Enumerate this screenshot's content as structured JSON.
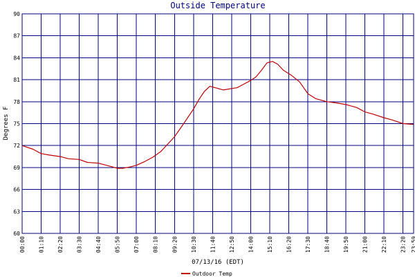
{
  "chart_data": {
    "type": "line",
    "title": "Outside Temperature",
    "xlabel": "07/13/16 (EDT)",
    "ylabel": "Degrees F",
    "ylim": [
      60,
      90
    ],
    "yticks": [
      60,
      63,
      66,
      69,
      72,
      75,
      78,
      81,
      84,
      87,
      90
    ],
    "xlim": [
      "00:00",
      "23:59"
    ],
    "xticks": [
      "00:00",
      "01:10",
      "02:20",
      "03:30",
      "04:40",
      "05:50",
      "07:00",
      "08:10",
      "09:20",
      "10:30",
      "11:40",
      "12:50",
      "14:00",
      "15:10",
      "16:20",
      "17:30",
      "18:40",
      "19:50",
      "21:00",
      "22:10",
      "23:20",
      "23:59"
    ],
    "grid": true,
    "legend": "bottom",
    "colors": {
      "series": "#c00000",
      "grid": "#000080",
      "title": "#000080"
    },
    "series": [
      {
        "name": "Outdoor Temp",
        "x": [
          "00:00",
          "00:40",
          "01:10",
          "01:40",
          "02:20",
          "02:50",
          "03:30",
          "04:00",
          "04:40",
          "05:10",
          "05:30",
          "05:50",
          "06:10",
          "06:40",
          "07:00",
          "07:30",
          "08:00",
          "08:30",
          "09:00",
          "09:20",
          "09:50",
          "10:30",
          "10:50",
          "11:10",
          "11:30",
          "11:50",
          "12:20",
          "12:50",
          "13:10",
          "13:30",
          "14:00",
          "14:20",
          "14:40",
          "15:00",
          "15:20",
          "15:40",
          "16:00",
          "16:30",
          "17:00",
          "17:30",
          "18:00",
          "18:40",
          "19:20",
          "19:50",
          "20:30",
          "21:00",
          "21:30",
          "22:10",
          "22:40",
          "23:20",
          "23:59"
        ],
        "values": [
          72.0,
          71.5,
          70.9,
          70.7,
          70.5,
          70.2,
          70.1,
          69.7,
          69.6,
          69.3,
          69.1,
          68.9,
          68.9,
          69.1,
          69.3,
          69.8,
          70.4,
          71.2,
          72.4,
          73.2,
          74.8,
          77.0,
          78.3,
          79.4,
          80.1,
          79.9,
          79.6,
          79.8,
          79.9,
          80.3,
          80.9,
          81.4,
          82.3,
          83.3,
          83.5,
          83.1,
          82.3,
          81.6,
          80.7,
          79.1,
          78.4,
          78.0,
          77.8,
          77.6,
          77.2,
          76.6,
          76.3,
          75.8,
          75.5,
          75.0,
          74.9
        ]
      }
    ]
  }
}
